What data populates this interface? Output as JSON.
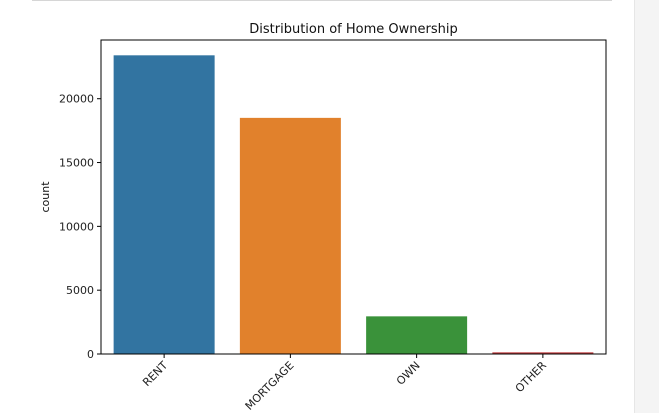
{
  "chart_data": {
    "type": "bar",
    "title": "Distribution of Home Ownership",
    "xlabel": "",
    "ylabel": "count",
    "categories": [
      "RENT",
      "MORTGAGE",
      "OWN",
      "OTHER"
    ],
    "values": [
      23400,
      18500,
      2950,
      130
    ],
    "ylim": [
      0,
      24600
    ],
    "yticks": [
      0,
      5000,
      10000,
      15000,
      20000
    ],
    "colors": [
      "#3274a1",
      "#e1812c",
      "#3a923a",
      "#c03d3e"
    ],
    "grid": false,
    "legend": "none"
  }
}
